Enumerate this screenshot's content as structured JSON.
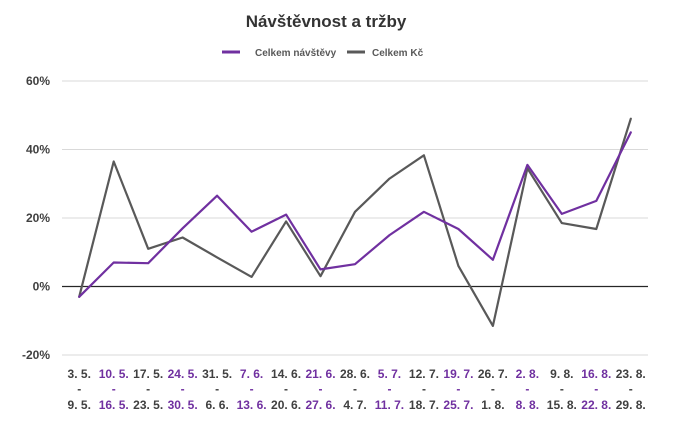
{
  "chart_data": {
    "type": "line",
    "title": "Návštěvnost a tržby",
    "legend_position": "top",
    "grid": true,
    "ylim": [
      -20,
      60
    ],
    "yticks": [
      -20,
      0,
      20,
      40,
      60
    ],
    "ytick_labels": [
      "-20%",
      "0%",
      "20%",
      "40%",
      "60%"
    ],
    "categories": [
      {
        "start": "3. 5.",
        "sep": "-",
        "end": "9. 5."
      },
      {
        "start": "10. 5.",
        "sep": "-",
        "end": "16. 5."
      },
      {
        "start": "17. 5.",
        "sep": "-",
        "end": "23. 5."
      },
      {
        "start": "24. 5.",
        "sep": "-",
        "end": "30. 5."
      },
      {
        "start": "31. 5.",
        "sep": "-",
        "end": "6. 6."
      },
      {
        "start": "7. 6.",
        "sep": "-",
        "end": "13. 6."
      },
      {
        "start": "14. 6.",
        "sep": "-",
        "end": "20. 6."
      },
      {
        "start": "21. 6.",
        "sep": "-",
        "end": "27. 6."
      },
      {
        "start": "28. 6.",
        "sep": "-",
        "end": "4. 7."
      },
      {
        "start": "5. 7.",
        "sep": "-",
        "end": "11. 7."
      },
      {
        "start": "12. 7.",
        "sep": "-",
        "end": "18. 7."
      },
      {
        "start": "19. 7.",
        "sep": "-",
        "end": "25. 7."
      },
      {
        "start": "26. 7.",
        "sep": "-",
        "end": "1. 8."
      },
      {
        "start": "2. 8.",
        "sep": "-",
        "end": "8. 8."
      },
      {
        "start": "9. 8.",
        "sep": "-",
        "end": "15. 8."
      },
      {
        "start": "16. 8.",
        "sep": "-",
        "end": "22. 8."
      },
      {
        "start": "23. 8.",
        "sep": "-",
        "end": "29. 8."
      }
    ],
    "category_label_colors": [
      "#404040",
      "#7030a0"
    ],
    "series": [
      {
        "name": "Celkem návštěvy",
        "color": "#7030a0",
        "values": [
          -3,
          7,
          6.8,
          17,
          26.5,
          16,
          21,
          5,
          6.5,
          15,
          21.8,
          16.8,
          7.8,
          35.5,
          21.2,
          25,
          45
        ]
      },
      {
        "name": "Celkem Kč",
        "color": "#595959",
        "values": [
          -3,
          36.5,
          11,
          14.3,
          8.5,
          2.8,
          19,
          3,
          21.8,
          31.5,
          38.3,
          6,
          -11.5,
          34.5,
          18.5,
          16.8,
          49
        ]
      }
    ]
  }
}
